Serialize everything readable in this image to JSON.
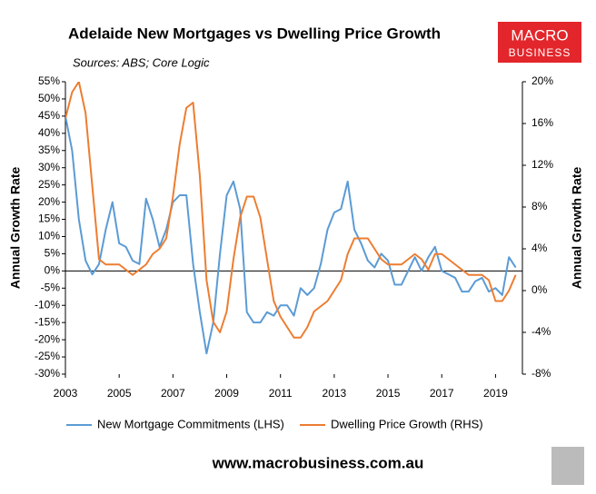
{
  "chart_data": {
    "type": "line",
    "title": "Adelaide New Mortgages vs Dwelling Price Growth",
    "subtitle": "Sources: ABS; Core Logic",
    "y_label": "Annual Growth Rate",
    "y2_label": "Annual Growth Rate",
    "logo": {
      "line1": "MACRO",
      "line2": "BUSINESS"
    },
    "footer": "www.macrobusiness.com.au",
    "xlim": [
      2003,
      2020
    ],
    "xticks": [
      2003,
      2005,
      2007,
      2009,
      2011,
      2013,
      2015,
      2017,
      2019
    ],
    "ylim": [
      -30,
      55
    ],
    "yticks": [
      {
        "value": 55,
        "label": "55%"
      },
      {
        "value": 50,
        "label": "50%"
      },
      {
        "value": 45,
        "label": "45%"
      },
      {
        "value": 40,
        "label": "40%"
      },
      {
        "value": 35,
        "label": "35%"
      },
      {
        "value": 30,
        "label": "30%"
      },
      {
        "value": 25,
        "label": "25%"
      },
      {
        "value": 20,
        "label": "20%"
      },
      {
        "value": 15,
        "label": "15%"
      },
      {
        "value": 10,
        "label": "10%"
      },
      {
        "value": 5,
        "label": "5%"
      },
      {
        "value": 0,
        "label": "0%"
      },
      {
        "value": -5,
        "label": "-5%"
      },
      {
        "value": -10,
        "label": "-10%"
      },
      {
        "value": -15,
        "label": "-15%"
      },
      {
        "value": -20,
        "label": "-20%"
      },
      {
        "value": -25,
        "label": "-25%"
      },
      {
        "value": -30,
        "label": "-30%"
      }
    ],
    "y2lim": [
      -8,
      20
    ],
    "y2ticks": [
      {
        "value": 20,
        "label": "20%"
      },
      {
        "value": 16,
        "label": "16%"
      },
      {
        "value": 12,
        "label": "12%"
      },
      {
        "value": 8,
        "label": "8%"
      },
      {
        "value": 4,
        "label": "4%"
      },
      {
        "value": 0,
        "label": "0%"
      },
      {
        "value": -4,
        "label": "-4%"
      },
      {
        "value": -8,
        "label": "-8%"
      }
    ],
    "x": [
      2003.0,
      2003.25,
      2003.5,
      2003.75,
      2004.0,
      2004.25,
      2004.5,
      2004.75,
      2005.0,
      2005.25,
      2005.5,
      2005.75,
      2006.0,
      2006.25,
      2006.5,
      2006.75,
      2007.0,
      2007.25,
      2007.5,
      2007.75,
      2008.0,
      2008.25,
      2008.5,
      2008.75,
      2009.0,
      2009.25,
      2009.5,
      2009.75,
      2010.0,
      2010.25,
      2010.5,
      2010.75,
      2011.0,
      2011.25,
      2011.5,
      2011.75,
      2012.0,
      2012.25,
      2012.5,
      2012.75,
      2013.0,
      2013.25,
      2013.5,
      2013.75,
      2014.0,
      2014.25,
      2014.5,
      2014.75,
      2015.0,
      2015.25,
      2015.5,
      2015.75,
      2016.0,
      2016.25,
      2016.5,
      2016.75,
      2017.0,
      2017.25,
      2017.5,
      2017.75,
      2018.0,
      2018.25,
      2018.5,
      2018.75,
      2019.0,
      2019.25,
      2019.5,
      2019.75
    ],
    "series": [
      {
        "name": "New Mortgage Commitments (LHS)",
        "color": "#5b9bd5",
        "axis": "y",
        "values": [
          45,
          35,
          15,
          3,
          -1,
          2,
          12,
          20,
          8,
          7,
          3,
          2,
          21,
          15,
          7,
          12,
          20,
          22,
          22,
          2,
          -12,
          -24,
          -15,
          5,
          22,
          26,
          18,
          -12,
          -15,
          -15,
          -12,
          -13,
          -10,
          -10,
          -13,
          -5,
          -7,
          -5,
          2,
          12,
          17,
          18,
          26,
          12,
          8,
          3,
          1,
          5,
          3,
          -4,
          -4,
          0,
          4,
          0,
          4,
          7,
          0,
          -1,
          -2,
          -6,
          -6,
          -3,
          -2,
          -6,
          -5,
          -7,
          4,
          1
        ]
      },
      {
        "name": "Dwelling Price Growth (RHS)",
        "color": "#ed7d31",
        "axis": "y2",
        "values": [
          16.5,
          19,
          20,
          17,
          10,
          3,
          2.5,
          2.5,
          2.5,
          2,
          1.5,
          2,
          2.5,
          3.5,
          4,
          5,
          9,
          14,
          17.5,
          18,
          11,
          1,
          -3,
          -4,
          -2,
          3,
          7,
          9,
          9,
          7,
          3,
          -1,
          -2.5,
          -3.5,
          -4.5,
          -4.5,
          -3.5,
          -2,
          -1.5,
          -1,
          0,
          1,
          3.5,
          5,
          5,
          5,
          4,
          3,
          2.5,
          2.5,
          2.5,
          3,
          3.5,
          3,
          2,
          3.5,
          3.5,
          3,
          2.5,
          2,
          1.5,
          1.5,
          1.5,
          1,
          -1,
          -1,
          0,
          1.5
        ]
      }
    ]
  }
}
